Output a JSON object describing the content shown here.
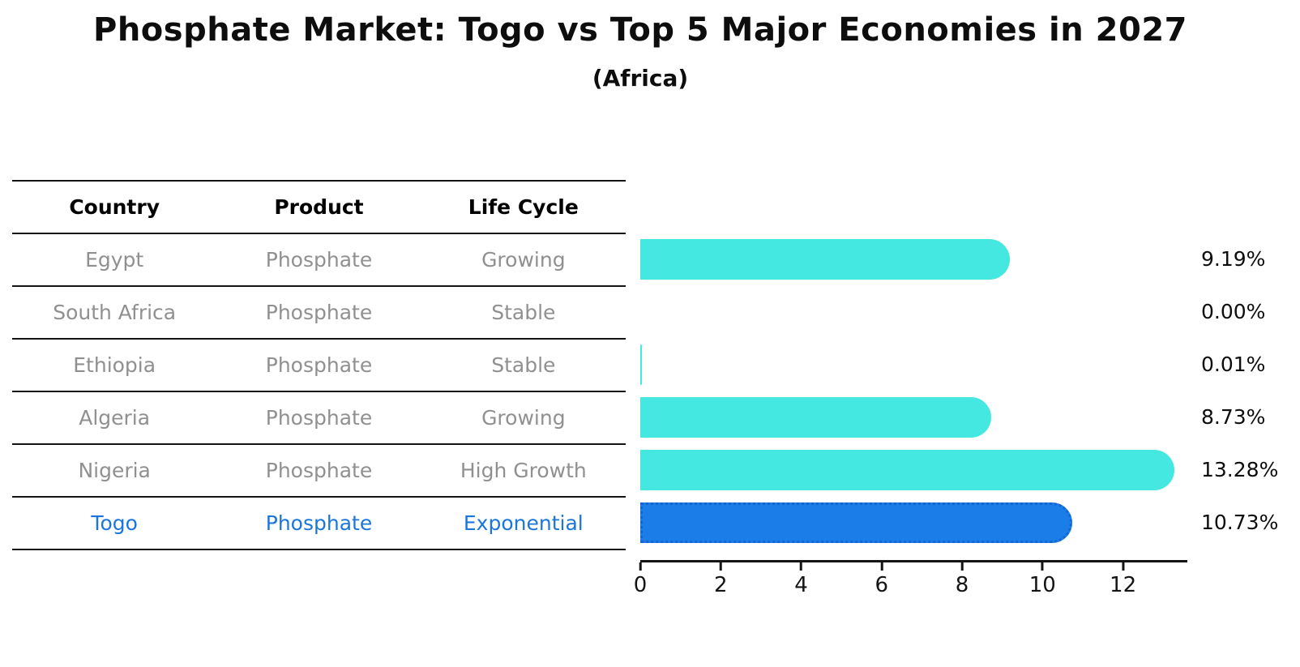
{
  "title": "Phosphate Market: Togo vs Top 5 Major Economies in 2027",
  "subtitle": "(Africa)",
  "table": {
    "headers": [
      "Country",
      "Product",
      "Life Cycle"
    ],
    "rows": [
      {
        "country": "Egypt",
        "product": "Phosphate",
        "life_cycle": "Growing",
        "highlight": false
      },
      {
        "country": "South Africa",
        "product": "Phosphate",
        "life_cycle": "Stable",
        "highlight": false
      },
      {
        "country": "Ethiopia",
        "product": "Phosphate",
        "life_cycle": "Stable",
        "highlight": false
      },
      {
        "country": "Algeria",
        "product": "Phosphate",
        "life_cycle": "Growing",
        "highlight": false
      },
      {
        "country": "Nigeria",
        "product": "Phosphate",
        "life_cycle": "High Growth",
        "highlight": false
      },
      {
        "country": "Togo",
        "product": "Phosphate",
        "life_cycle": "Exponential",
        "highlight": true
      }
    ]
  },
  "chart_data": {
    "type": "bar",
    "orientation": "horizontal",
    "title": "Phosphate Market: Togo vs Top 5 Major Economies in 2027",
    "subtitle": "(Africa)",
    "categories": [
      "Egypt",
      "South Africa",
      "Ethiopia",
      "Algeria",
      "Nigeria",
      "Togo"
    ],
    "values": [
      9.19,
      0.0,
      0.01,
      8.73,
      13.28,
      10.73
    ],
    "value_labels": [
      "9.19%",
      "0.00%",
      "0.01%",
      "8.73%",
      "13.28%",
      "10.73%"
    ],
    "x_ticks": [
      0,
      2,
      4,
      6,
      8,
      10,
      12
    ],
    "xlim": [
      0,
      13.6
    ],
    "highlight_index": 5,
    "grid": false,
    "legend": "none",
    "colors": {
      "bar": "#45e8e1",
      "highlight_bar": "#1b7de8",
      "highlight_border": "#1465d2",
      "row_text": "#909090",
      "highlight_text": "#1b76dc",
      "axis": "#141414"
    }
  }
}
